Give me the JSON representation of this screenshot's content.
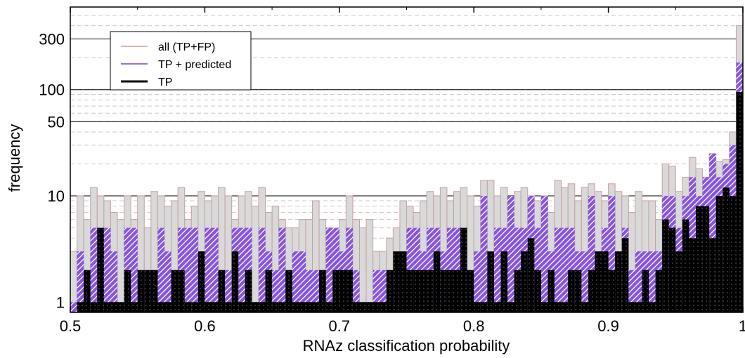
{
  "chart_data": {
    "type": "bar",
    "title": "",
    "xlabel": "RNAz classification probability",
    "ylabel": "frequency",
    "x_scale": "linear",
    "y_scale": "log",
    "xlim": [
      0.5,
      1.0
    ],
    "ylim": [
      0.8,
      600
    ],
    "bin_width": 0.005,
    "bin_start": [
      0.5,
      0.505,
      0.51,
      0.515,
      0.52,
      0.525,
      0.53,
      0.535,
      0.54,
      0.545,
      0.55,
      0.555,
      0.56,
      0.565,
      0.57,
      0.575,
      0.58,
      0.585,
      0.59,
      0.595,
      0.6,
      0.605,
      0.61,
      0.615,
      0.62,
      0.625,
      0.63,
      0.635,
      0.64,
      0.645,
      0.65,
      0.655,
      0.66,
      0.665,
      0.67,
      0.675,
      0.68,
      0.685,
      0.69,
      0.695,
      0.7,
      0.705,
      0.71,
      0.715,
      0.72,
      0.725,
      0.73,
      0.735,
      0.74,
      0.745,
      0.75,
      0.755,
      0.76,
      0.765,
      0.77,
      0.775,
      0.78,
      0.785,
      0.79,
      0.795,
      0.8,
      0.805,
      0.81,
      0.815,
      0.82,
      0.825,
      0.83,
      0.835,
      0.84,
      0.845,
      0.85,
      0.855,
      0.86,
      0.865,
      0.87,
      0.875,
      0.88,
      0.885,
      0.89,
      0.895,
      0.9,
      0.905,
      0.91,
      0.915,
      0.92,
      0.925,
      0.93,
      0.935,
      0.94,
      0.945,
      0.95,
      0.955,
      0.96,
      0.965,
      0.97,
      0.975,
      0.98,
      0.985,
      0.99,
      0.995
    ],
    "x_ticks": [
      {
        "value": 0.5,
        "label": "0.5"
      },
      {
        "value": 0.6,
        "label": "0.6"
      },
      {
        "value": 0.7,
        "label": "0.7"
      },
      {
        "value": 0.8,
        "label": "0.8"
      },
      {
        "value": 0.9,
        "label": "0.9"
      },
      {
        "value": 1.0,
        "label": "1"
      }
    ],
    "y_ticks": [
      {
        "value": 1,
        "label": "1"
      },
      {
        "value": 10,
        "label": "10"
      },
      {
        "value": 50,
        "label": "50"
      },
      {
        "value": 100,
        "label": "100"
      },
      {
        "value": 300,
        "label": "300"
      }
    ],
    "grid": true,
    "legend_position": "top-left",
    "series": [
      {
        "name": "all (TP+FP)",
        "color": "#c8a0a0",
        "fill": "#d9d9d9",
        "values": [
          3,
          10,
          6,
          12,
          10,
          9,
          7,
          6,
          10,
          6,
          10,
          5,
          11,
          10,
          8,
          9,
          12,
          6,
          8,
          11,
          9,
          10,
          12,
          10,
          6,
          10,
          11,
          8,
          12,
          7,
          8,
          6,
          5,
          5,
          6,
          6,
          9,
          6,
          5,
          4,
          6,
          10,
          6,
          5,
          6,
          3,
          3,
          4,
          5,
          9,
          8,
          7,
          9,
          11,
          10,
          12,
          9,
          11,
          12,
          10,
          8,
          14,
          14,
          10,
          12,
          9,
          11,
          12,
          10,
          9,
          10,
          7,
          14,
          12,
          13,
          9,
          12,
          13,
          11,
          9,
          13,
          11,
          10,
          7,
          11,
          9,
          9,
          6,
          20,
          19,
          11,
          15,
          23,
          18,
          15,
          25,
          21,
          22,
          40,
          400
        ]
      },
      {
        "name": "TP + predicted",
        "color": "#7744cc",
        "fill": "#8855dd",
        "values": [
          1,
          3,
          2,
          5,
          1,
          5,
          3,
          1,
          5,
          5,
          2,
          2,
          2,
          5,
          3,
          1,
          5,
          5,
          5,
          3,
          5,
          5,
          2,
          2,
          5,
          5,
          5,
          1,
          5,
          3,
          2,
          5,
          2,
          3,
          3,
          2,
          2,
          2,
          5,
          5,
          3,
          5,
          2,
          1,
          1,
          2,
          2,
          2,
          2,
          3,
          5,
          5,
          3,
          5,
          5,
          3,
          5,
          5,
          5,
          2,
          3,
          10,
          2,
          5,
          5,
          10,
          5,
          5,
          10,
          5,
          10,
          3,
          5,
          5,
          5,
          3,
          3,
          10,
          3,
          5,
          10,
          3,
          5,
          2,
          3,
          3,
          3,
          3,
          10,
          10,
          5,
          10,
          15,
          10,
          15,
          25,
          15,
          20,
          30,
          180
        ]
      },
      {
        "name": "TP",
        "color": "#000000",
        "fill": "#000000",
        "values": [
          0,
          1,
          2,
          1,
          5,
          1,
          1,
          1,
          2,
          1,
          2,
          2,
          2,
          1,
          1,
          2,
          2,
          1,
          1,
          3,
          1,
          1,
          2,
          1,
          3,
          1,
          2,
          1,
          1,
          2,
          1,
          1,
          2,
          1,
          1,
          1,
          1,
          2,
          1,
          2,
          2,
          2,
          1,
          1,
          1,
          1,
          1,
          2,
          3,
          3,
          2,
          2,
          2,
          2,
          3,
          2,
          2,
          2,
          5,
          2,
          1,
          1,
          3,
          1,
          3,
          1,
          2,
          3,
          4,
          2,
          1,
          2,
          1,
          1,
          2,
          2,
          1,
          2,
          3,
          3,
          2,
          3,
          4,
          1,
          1,
          2,
          1,
          2,
          6,
          5,
          3,
          6,
          4,
          8,
          8,
          4,
          10,
          12,
          10,
          95
        ]
      }
    ]
  }
}
